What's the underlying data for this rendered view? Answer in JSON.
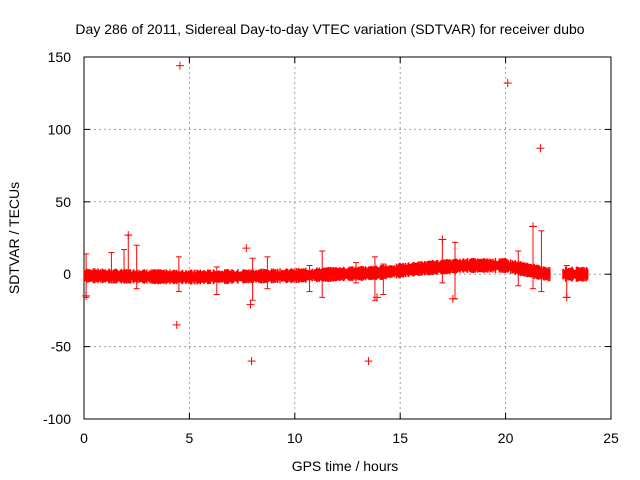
{
  "chart_data": {
    "type": "scatter",
    "title": "Day 286 of 2011, Sidereal Day-to-day VTEC variation (SDTVAR) for receiver dubo",
    "xlabel": "GPS time / hours",
    "ylabel": "SDTVAR / TECUs",
    "xlim": [
      0,
      25
    ],
    "ylim": [
      -100,
      150
    ],
    "xticks": [
      0,
      5,
      10,
      15,
      20,
      25
    ],
    "yticks": [
      -100,
      -50,
      0,
      50,
      100,
      150
    ],
    "grid": true,
    "marker": "+",
    "color": "#ff0000",
    "band": {
      "x_start": 0.0,
      "x_end": 23.9,
      "gaps": [
        [
          22.1,
          22.7
        ]
      ],
      "center": [
        [
          0,
          -1
        ],
        [
          5,
          -2
        ],
        [
          10,
          -1
        ],
        [
          14,
          1
        ],
        [
          16,
          4
        ],
        [
          18,
          6
        ],
        [
          20,
          6
        ],
        [
          21,
          3
        ],
        [
          22,
          0
        ],
        [
          23.9,
          0
        ]
      ],
      "half_width": 3.5
    },
    "outliers": [
      {
        "x": 4.55,
        "y": 144
      },
      {
        "x": 20.1,
        "y": 132
      },
      {
        "x": 21.65,
        "y": 87
      },
      {
        "x": 7.7,
        "y": 18
      },
      {
        "x": 2.1,
        "y": 27
      },
      {
        "x": 21.3,
        "y": 33
      },
      {
        "x": 17.0,
        "y": 24
      },
      {
        "x": 4.4,
        "y": -35
      },
      {
        "x": 7.9,
        "y": -21
      },
      {
        "x": 7.95,
        "y": -60
      },
      {
        "x": 13.5,
        "y": -60
      },
      {
        "x": 22.9,
        "y": -16
      },
      {
        "x": 0.1,
        "y": -15
      },
      {
        "x": 13.9,
        "y": -16
      },
      {
        "x": 17.5,
        "y": -17
      }
    ],
    "spikes": [
      {
        "x": 0.1,
        "lo": -16,
        "hi": 14
      },
      {
        "x": 1.3,
        "lo": -6,
        "hi": 15
      },
      {
        "x": 1.9,
        "lo": -4,
        "hi": 17
      },
      {
        "x": 2.1,
        "lo": -6,
        "hi": 27
      },
      {
        "x": 2.5,
        "lo": -10,
        "hi": 20
      },
      {
        "x": 4.5,
        "lo": -12,
        "hi": 12
      },
      {
        "x": 6.3,
        "lo": -14,
        "hi": 5
      },
      {
        "x": 8.0,
        "lo": -18,
        "hi": 11
      },
      {
        "x": 8.7,
        "lo": -10,
        "hi": 12
      },
      {
        "x": 10.7,
        "lo": -12,
        "hi": 6
      },
      {
        "x": 11.3,
        "lo": -16,
        "hi": 16
      },
      {
        "x": 12.9,
        "lo": -6,
        "hi": 8
      },
      {
        "x": 13.8,
        "lo": -18,
        "hi": 12
      },
      {
        "x": 14.2,
        "lo": -14,
        "hi": 7
      },
      {
        "x": 17.0,
        "lo": -6,
        "hi": 24
      },
      {
        "x": 17.6,
        "lo": -17,
        "hi": 22
      },
      {
        "x": 20.6,
        "lo": -8,
        "hi": 16
      },
      {
        "x": 21.3,
        "lo": -10,
        "hi": 33
      },
      {
        "x": 21.7,
        "lo": -12,
        "hi": 30
      },
      {
        "x": 22.9,
        "lo": -16,
        "hi": 6
      }
    ]
  }
}
